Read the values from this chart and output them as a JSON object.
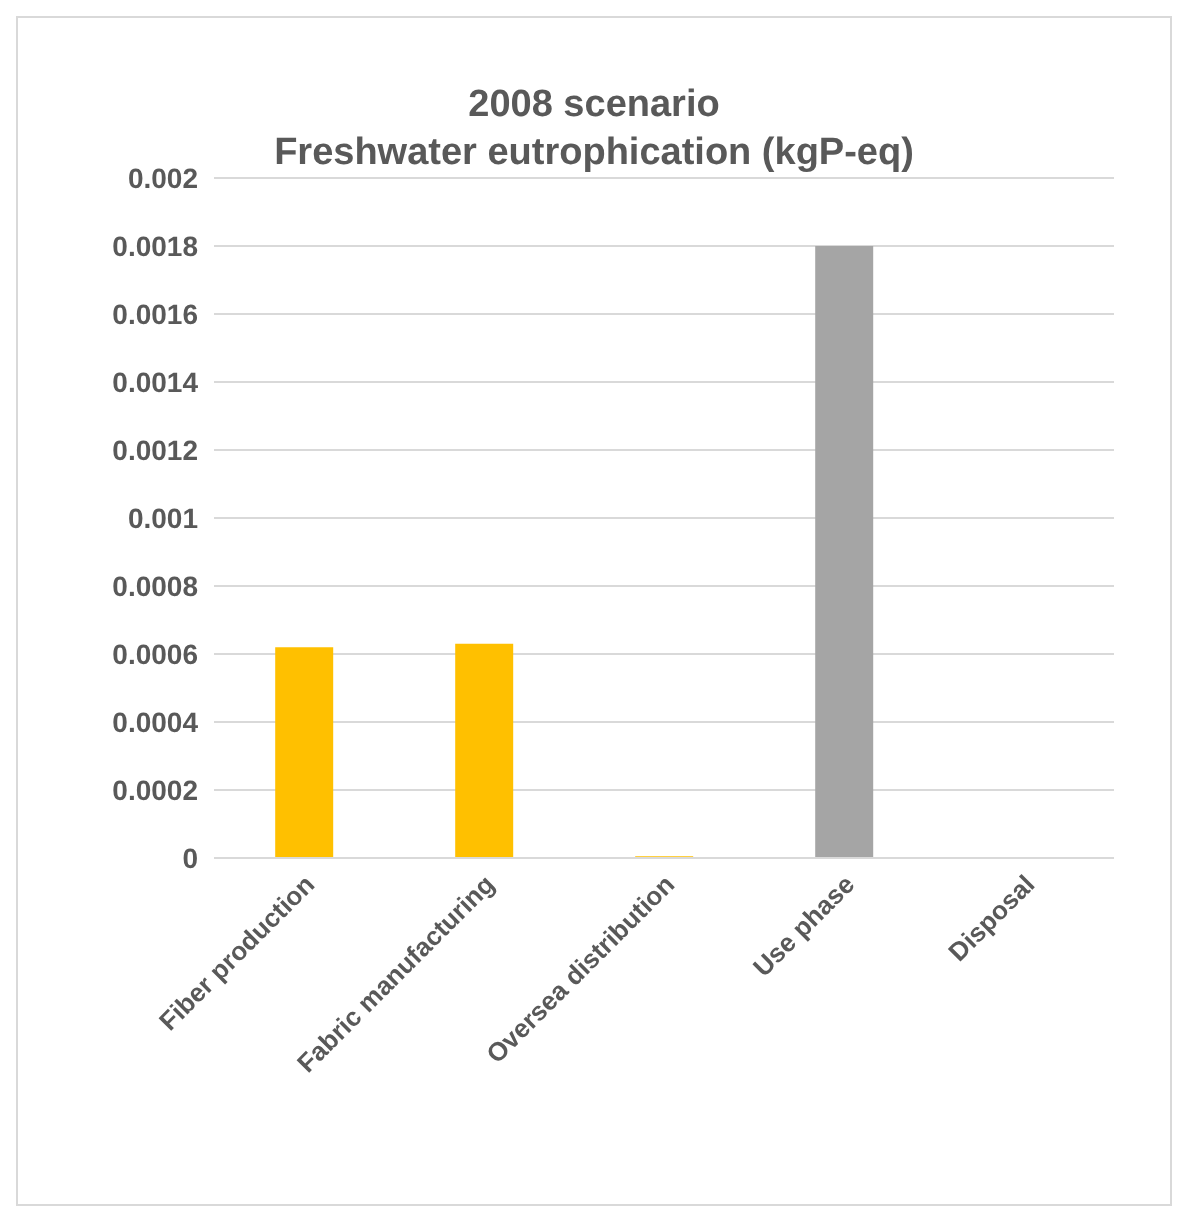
{
  "chart_data": {
    "type": "bar",
    "title": "2008 scenario\nFreshwater eutrophication (kgP-eq)",
    "categories": [
      "Fiber production",
      "Fabric manufacturing",
      "Oversea distribution",
      "Use phase",
      "Disposal"
    ],
    "values": [
      0.00062,
      0.00063,
      5e-06,
      0.0018,
      0
    ],
    "colors": [
      "#ffc000",
      "#ffc000",
      "#ffc000",
      "#a5a5a5",
      "#a5a5a5"
    ],
    "ylim": [
      0,
      0.002
    ],
    "yticks": [
      0,
      0.0002,
      0.0004,
      0.0006,
      0.0008,
      0.001,
      0.0012,
      0.0014,
      0.0016,
      0.0018,
      0.002
    ],
    "grid": "y"
  }
}
